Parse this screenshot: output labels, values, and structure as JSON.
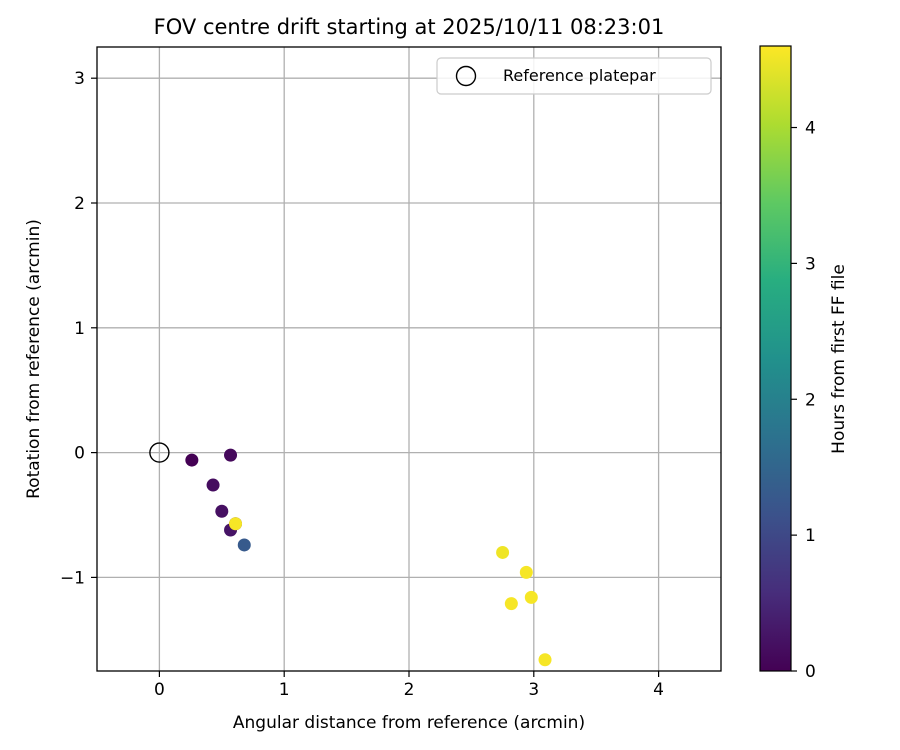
{
  "chart_data": {
    "type": "scatter",
    "title": "FOV centre drift starting at 2025/10/11 08:23:01",
    "xlabel": "Angular distance from reference (arcmin)",
    "ylabel": "Rotation from reference (arcmin)",
    "xlim": [
      -0.5,
      4.5
    ],
    "ylim": [
      -1.75,
      3.25
    ],
    "xticks": [
      0,
      1,
      2,
      3,
      4
    ],
    "yticks": [
      -1,
      0,
      1,
      2,
      3
    ],
    "xtick_labels": [
      "0",
      "1",
      "2",
      "3",
      "4"
    ],
    "ytick_labels": [
      "−1",
      "0",
      "1",
      "2",
      "3"
    ],
    "grid": true,
    "reference": {
      "x": 0,
      "y": 0
    },
    "legend": {
      "label": "Reference platepar",
      "location": "upper right"
    },
    "colorbar": {
      "label": "Hours from first FF file",
      "range": [
        0,
        4.6
      ],
      "ticks": [
        0,
        1,
        2,
        3,
        4
      ],
      "colormap": "viridis"
    },
    "points": [
      {
        "x": 0.26,
        "y": -0.06,
        "hours": 0.0
      },
      {
        "x": 0.57,
        "y": -0.02,
        "hours": 0.1
      },
      {
        "x": 0.43,
        "y": -0.26,
        "hours": 0.15
      },
      {
        "x": 0.5,
        "y": -0.47,
        "hours": 0.2
      },
      {
        "x": 0.57,
        "y": -0.62,
        "hours": 0.25
      },
      {
        "x": 0.61,
        "y": -0.57,
        "hours": 0.3
      },
      {
        "x": 0.68,
        "y": -0.74,
        "hours": 1.3
      },
      {
        "x": 0.61,
        "y": -0.57,
        "hours": 4.55
      },
      {
        "x": 2.75,
        "y": -0.8,
        "hours": 4.5
      },
      {
        "x": 2.94,
        "y": -0.96,
        "hours": 4.55
      },
      {
        "x": 2.98,
        "y": -1.16,
        "hours": 4.55
      },
      {
        "x": 2.82,
        "y": -1.21,
        "hours": 4.55
      },
      {
        "x": 3.09,
        "y": -1.66,
        "hours": 4.55
      }
    ]
  }
}
